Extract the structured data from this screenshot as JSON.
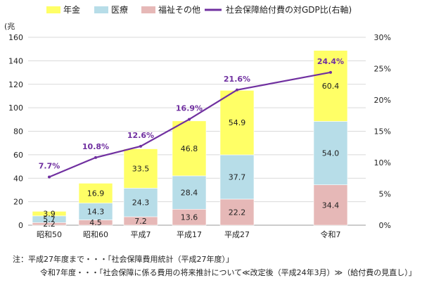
{
  "chart_data": {
    "type": "bar",
    "stacked": true,
    "title": "",
    "categories": [
      "昭和50",
      "昭和60",
      "平成7",
      "平成17",
      "平成27",
      "令和7"
    ],
    "series": [
      {
        "name": "福祉その他",
        "color": "#e6b8b7",
        "values": [
          2.2,
          4.5,
          7.2,
          13.6,
          22.2,
          34.4
        ]
      },
      {
        "name": "医療",
        "color": "#b7dde8",
        "values": [
          5.7,
          14.3,
          24.3,
          28.4,
          37.7,
          54.0
        ]
      },
      {
        "name": "年金",
        "color": "#ffff66",
        "values": [
          3.9,
          16.9,
          33.5,
          46.8,
          54.9,
          60.4
        ]
      }
    ],
    "value_labels": {
      "福祉その他": [
        "2.2",
        "4.5",
        "7.2",
        "13.6",
        "22.2",
        "34.4"
      ],
      "医療": [
        "5.7",
        "14.3",
        "24.3",
        "28.4",
        "37.7",
        "54.0"
      ],
      "年金": [
        "3.9",
        "16.9",
        "33.5",
        "46.8",
        "54.9",
        "60.4"
      ]
    },
    "line_series": {
      "name": "社会保障給付費の対GDP比(右軸)",
      "color": "#7030a0",
      "axis": "right",
      "values": [
        7.7,
        10.8,
        12.6,
        16.9,
        21.6,
        24.4
      ],
      "labels": [
        "7.7%",
        "10.8%",
        "12.6%",
        "16.9%",
        "21.6%",
        "24.4%"
      ]
    },
    "legend_order": [
      "年金",
      "医療",
      "福祉その他",
      "社会保障給付費の対GDP比(右軸)"
    ],
    "legend_position": "top",
    "y_left": {
      "unit_label": "(兆",
      "ylim": [
        0,
        160
      ],
      "ticks": [
        "0",
        "20",
        "40",
        "60",
        "80",
        "100",
        "120",
        "140",
        "160"
      ]
    },
    "y_right": {
      "ylim": [
        0,
        30
      ],
      "ticks": [
        "0%",
        "5%",
        "10%",
        "15%",
        "20%",
        "25%",
        "30%"
      ]
    },
    "grid": true
  },
  "notes": [
    "注：平成27年度まで・・・「社会保障費用統計（平成27年度）」",
    "令和7年度・・・「社会保障に係る費用の将来推計について≪改定後（平成24年3月）≫（給付費の見直し）」"
  ]
}
